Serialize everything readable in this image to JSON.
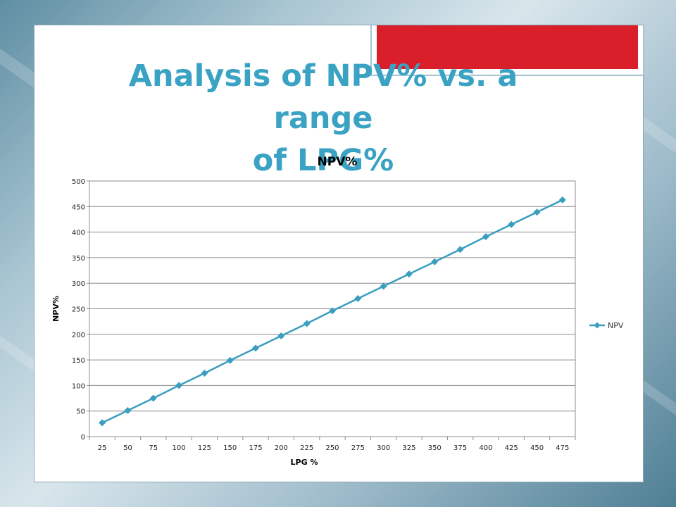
{
  "slide": {
    "title_line1": "Analysis of NPV% vs. a range",
    "title_line2": "of LPG%"
  },
  "colors": {
    "title": "#3aa3c4",
    "series": "#3a9ec0",
    "accent_tab": "#d91f2a"
  },
  "chart_data": {
    "type": "line",
    "title": "NPV%",
    "xlabel": "LPG %",
    "ylabel": "NPV%",
    "categories": [
      "25",
      "50",
      "75",
      "100",
      "125",
      "150",
      "175",
      "200",
      "225",
      "250",
      "275",
      "300",
      "325",
      "350",
      "375",
      "400",
      "425",
      "450",
      "475"
    ],
    "ylim": [
      0,
      500
    ],
    "yticks": [
      0,
      50,
      100,
      150,
      200,
      250,
      300,
      350,
      400,
      450,
      500
    ],
    "grid": true,
    "legend_position": "right",
    "series": [
      {
        "name": "NPV",
        "marker": "diamond",
        "values": [
          27,
          51,
          75,
          100,
          124,
          149,
          173,
          197,
          221,
          246,
          270,
          294,
          318,
          342,
          366,
          391,
          415,
          439,
          463
        ]
      }
    ]
  }
}
